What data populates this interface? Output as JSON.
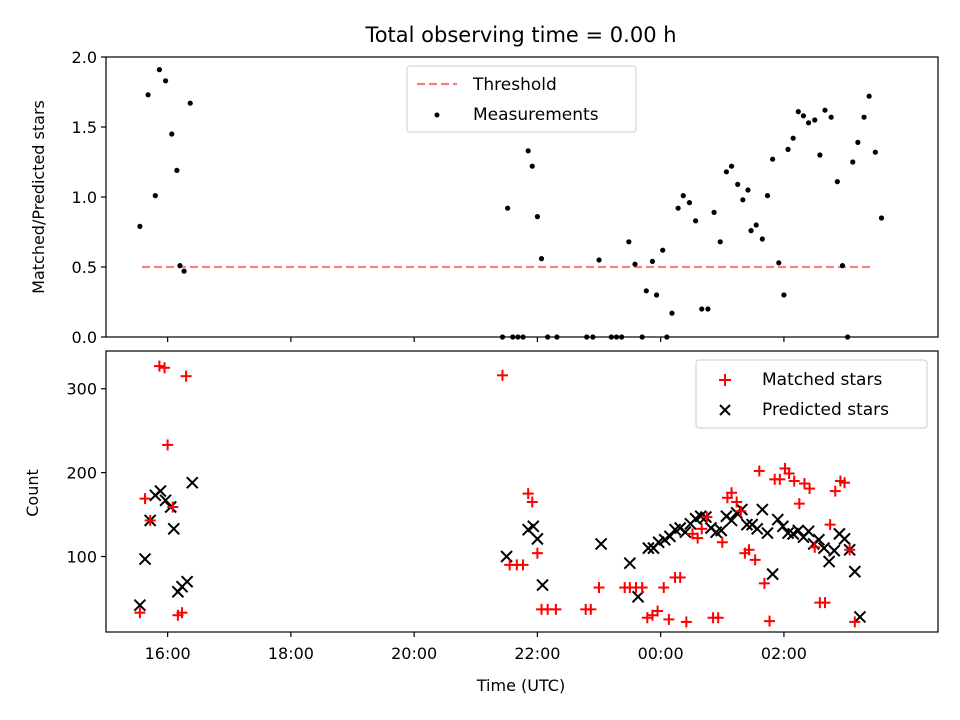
{
  "title": "Total observing time = 0.00 h",
  "colors": {
    "threshold": "#ff7f7f",
    "measurement": "#000000",
    "matched": "#ff0000",
    "predicted": "#000000",
    "axes": "#000000",
    "background": "#ffffff"
  },
  "chart_data": [
    {
      "type": "scatter",
      "panel": "top",
      "title": "Total observing time = 0.00 h",
      "ylabel": "Matched/Predicted stars",
      "xlabel": "",
      "xlim": [
        "15:00",
        "04:30"
      ],
      "ylim": [
        0,
        2.0
      ],
      "yticks": [
        "0.0",
        "0.5",
        "1.0",
        "1.5",
        "2.0"
      ],
      "legend": {
        "placement": "upper center",
        "entries": [
          "Threshold",
          "Measurements"
        ]
      },
      "threshold": {
        "name": "Threshold",
        "value": 0.5,
        "x_start": "15:35",
        "x_end": "03:25"
      },
      "series": [
        {
          "name": "Measurements",
          "marker": "dot",
          "points": [
            [
              "15:33",
              0.79
            ],
            [
              "15:41",
              1.73
            ],
            [
              "15:48",
              1.01
            ],
            [
              "15:52",
              1.91
            ],
            [
              "15:58",
              1.83
            ],
            [
              "16:04",
              1.45
            ],
            [
              "16:09",
              1.19
            ],
            [
              "16:12",
              0.51
            ],
            [
              "16:16",
              0.47
            ],
            [
              "16:22",
              1.67
            ],
            [
              "21:26",
              0.0
            ],
            [
              "21:31",
              0.92
            ],
            [
              "21:36",
              0.0
            ],
            [
              "21:41",
              0.0
            ],
            [
              "21:46",
              0.0
            ],
            [
              "21:51",
              1.33
            ],
            [
              "21:55",
              1.22
            ],
            [
              "22:00",
              0.86
            ],
            [
              "22:04",
              0.56
            ],
            [
              "22:10",
              0.0
            ],
            [
              "22:19",
              0.0
            ],
            [
              "22:48",
              0.0
            ],
            [
              "22:54",
              0.0
            ],
            [
              "23:00",
              0.55
            ],
            [
              "23:12",
              0.0
            ],
            [
              "23:17",
              0.0
            ],
            [
              "23:22",
              0.0
            ],
            [
              "23:29",
              0.68
            ],
            [
              "23:35",
              0.52
            ],
            [
              "23:42",
              0.0
            ],
            [
              "23:46",
              0.33
            ],
            [
              "23:52",
              0.54
            ],
            [
              "23:56",
              0.3
            ],
            [
              "00:02",
              0.62
            ],
            [
              "00:06",
              0.0
            ],
            [
              "00:11",
              0.17
            ],
            [
              "00:17",
              0.92
            ],
            [
              "00:22",
              1.01
            ],
            [
              "00:28",
              0.96
            ],
            [
              "00:34",
              0.83
            ],
            [
              "00:40",
              0.2
            ],
            [
              "00:46",
              0.2
            ],
            [
              "00:52",
              0.89
            ],
            [
              "00:58",
              0.68
            ],
            [
              "01:04",
              1.18
            ],
            [
              "01:09",
              1.22
            ],
            [
              "01:15",
              1.09
            ],
            [
              "01:20",
              0.98
            ],
            [
              "01:25",
              1.05
            ],
            [
              "01:28",
              0.76
            ],
            [
              "01:33",
              0.8
            ],
            [
              "01:39",
              0.7
            ],
            [
              "01:44",
              1.01
            ],
            [
              "01:49",
              1.27
            ],
            [
              "01:55",
              0.53
            ],
            [
              "02:00",
              0.3
            ],
            [
              "02:04",
              1.34
            ],
            [
              "02:09",
              1.42
            ],
            [
              "02:14",
              1.61
            ],
            [
              "02:19",
              1.58
            ],
            [
              "02:24",
              1.53
            ],
            [
              "02:30",
              1.55
            ],
            [
              "02:35",
              1.3
            ],
            [
              "02:40",
              1.62
            ],
            [
              "02:46",
              1.57
            ],
            [
              "02:52",
              1.11
            ],
            [
              "02:57",
              0.51
            ],
            [
              "03:02",
              0.0
            ],
            [
              "03:07",
              1.25
            ],
            [
              "03:12",
              1.39
            ],
            [
              "03:18",
              1.57
            ],
            [
              "03:23",
              1.72
            ],
            [
              "03:29",
              1.32
            ],
            [
              "03:35",
              0.85
            ]
          ]
        }
      ]
    },
    {
      "type": "scatter",
      "panel": "bottom",
      "title": "",
      "ylabel": "Count",
      "xlabel": "Time (UTC)",
      "xlim": [
        "15:00",
        "04:30"
      ],
      "ylim": [
        10,
        345
      ],
      "yticks": [
        "100",
        "200",
        "300"
      ],
      "xticks": [
        "16:00",
        "18:00",
        "20:00",
        "22:00",
        "00:00",
        "02:00"
      ],
      "legend": {
        "placement": "upper right",
        "entries": [
          "Matched stars",
          "Predicted stars"
        ]
      },
      "series": [
        {
          "name": "Matched stars",
          "marker": "plus",
          "points": [
            [
              "15:33",
              33
            ],
            [
              "15:38",
              169
            ],
            [
              "15:43",
              143
            ],
            [
              "15:52",
              327
            ],
            [
              "15:57",
              325
            ],
            [
              "16:00",
              233
            ],
            [
              "16:05",
              159
            ],
            [
              "16:10",
              30
            ],
            [
              "16:14",
              33
            ],
            [
              "16:18",
              315
            ],
            [
              "21:26",
              316
            ],
            [
              "21:33",
              90
            ],
            [
              "21:40",
              90
            ],
            [
              "21:46",
              90
            ],
            [
              "21:51",
              175
            ],
            [
              "21:55",
              165
            ],
            [
              "22:00",
              104
            ],
            [
              "22:04",
              37
            ],
            [
              "22:10",
              37
            ],
            [
              "22:18",
              37
            ],
            [
              "22:47",
              37
            ],
            [
              "22:52",
              37
            ],
            [
              "23:00",
              63
            ],
            [
              "23:25",
              63
            ],
            [
              "23:30",
              63
            ],
            [
              "23:36",
              63
            ],
            [
              "23:42",
              63
            ],
            [
              "23:47",
              27
            ],
            [
              "23:52",
              30
            ],
            [
              "23:57",
              35
            ],
            [
              "00:03",
              63
            ],
            [
              "00:08",
              25
            ],
            [
              "00:14",
              75
            ],
            [
              "00:19",
              75
            ],
            [
              "00:25",
              22
            ],
            [
              "00:31",
              127
            ],
            [
              "00:36",
              122
            ],
            [
              "00:40",
              133
            ],
            [
              "00:45",
              147
            ],
            [
              "00:51",
              27
            ],
            [
              "00:56",
              27
            ],
            [
              "01:00",
              117
            ],
            [
              "01:05",
              170
            ],
            [
              "01:09",
              176
            ],
            [
              "01:14",
              165
            ],
            [
              "01:18",
              154
            ],
            [
              "01:22",
              104
            ],
            [
              "01:26",
              108
            ],
            [
              "01:32",
              96
            ],
            [
              "01:36",
              202
            ],
            [
              "01:41",
              68
            ],
            [
              "01:46",
              23
            ],
            [
              "01:51",
              192
            ],
            [
              "01:56",
              192
            ],
            [
              "02:01",
              205
            ],
            [
              "02:05",
              199
            ],
            [
              "02:10",
              190
            ],
            [
              "02:15",
              163
            ],
            [
              "02:20",
              187
            ],
            [
              "02:25",
              181
            ],
            [
              "02:30",
              111
            ],
            [
              "02:35",
              45
            ],
            [
              "02:40",
              45
            ],
            [
              "02:45",
              138
            ],
            [
              "02:50",
              178
            ],
            [
              "02:55",
              190
            ],
            [
              "02:59",
              188
            ],
            [
              "03:04",
              108
            ],
            [
              "03:09",
              22
            ]
          ]
        },
        {
          "name": "Predicted stars",
          "marker": "x",
          "points": [
            [
              "15:33",
              42
            ],
            [
              "15:38",
              97
            ],
            [
              "15:43",
              143
            ],
            [
              "15:48",
              173
            ],
            [
              "15:53",
              178
            ],
            [
              "15:58",
              167
            ],
            [
              "16:03",
              159
            ],
            [
              "16:06",
              133
            ],
            [
              "16:10",
              58
            ],
            [
              "16:14",
              64
            ],
            [
              "16:19",
              70
            ],
            [
              "16:24",
              188
            ],
            [
              "21:30",
              100
            ],
            [
              "21:51",
              132
            ],
            [
              "21:56",
              136
            ],
            [
              "22:00",
              121
            ],
            [
              "22:05",
              66
            ],
            [
              "23:02",
              115
            ],
            [
              "23:30",
              92
            ],
            [
              "23:38",
              52
            ],
            [
              "23:48",
              110
            ],
            [
              "23:53",
              110
            ],
            [
              "23:58",
              117
            ],
            [
              "00:04",
              120
            ],
            [
              "00:09",
              124
            ],
            [
              "00:14",
              132
            ],
            [
              "00:19",
              134
            ],
            [
              "00:24",
              129
            ],
            [
              "00:29",
              139
            ],
            [
              "00:34",
              145
            ],
            [
              "00:39",
              148
            ],
            [
              "00:44",
              147
            ],
            [
              "00:49",
              134
            ],
            [
              "00:54",
              129
            ],
            [
              "00:59",
              131
            ],
            [
              "01:04",
              148
            ],
            [
              "01:09",
              143
            ],
            [
              "01:14",
              152
            ],
            [
              "01:19",
              156
            ],
            [
              "01:24",
              138
            ],
            [
              "01:29",
              138
            ],
            [
              "01:34",
              133
            ],
            [
              "01:39",
              156
            ],
            [
              "01:44",
              128
            ],
            [
              "01:49",
              79
            ],
            [
              "01:54",
              144
            ],
            [
              "01:59",
              136
            ],
            [
              "02:04",
              128
            ],
            [
              "02:09",
              127
            ],
            [
              "02:14",
              131
            ],
            [
              "02:19",
              123
            ],
            [
              "02:24",
              130
            ],
            [
              "02:29",
              115
            ],
            [
              "02:34",
              120
            ],
            [
              "02:39",
              110
            ],
            [
              "02:44",
              94
            ],
            [
              "02:49",
              107
            ],
            [
              "02:54",
              127
            ],
            [
              "02:59",
              121
            ],
            [
              "03:04",
              108
            ],
            [
              "03:09",
              82
            ],
            [
              "03:14",
              28
            ]
          ]
        }
      ]
    }
  ]
}
